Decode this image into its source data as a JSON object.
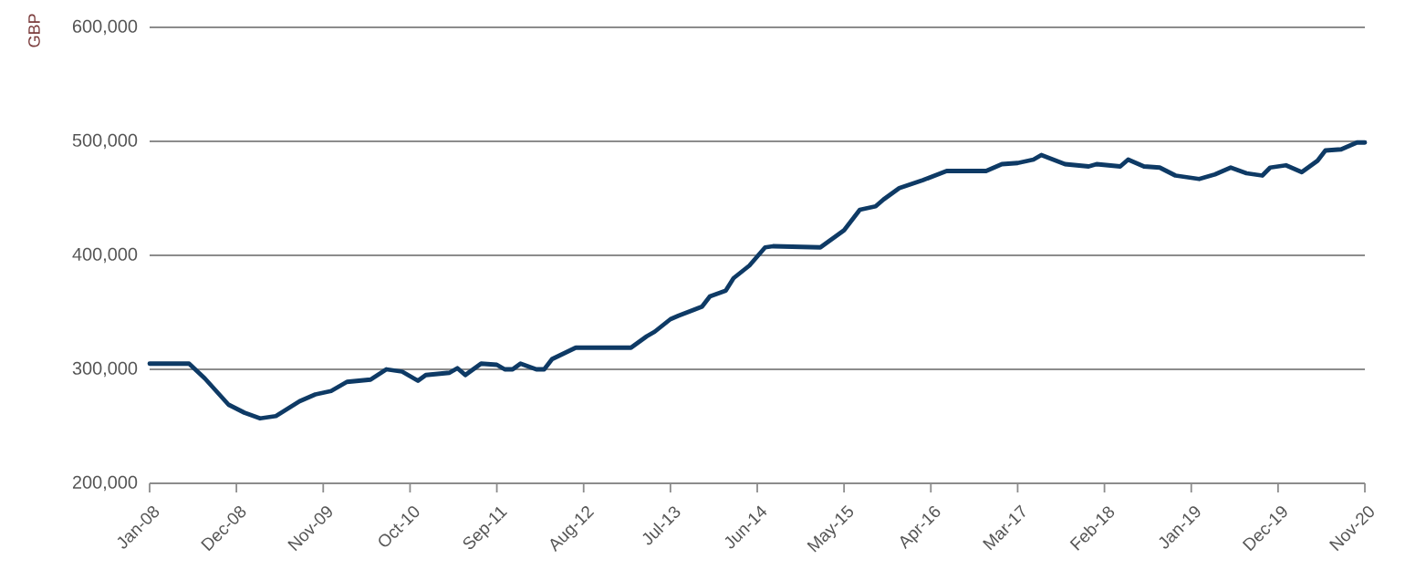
{
  "chart_data": {
    "type": "line",
    "ylabel": "GBP",
    "x": [
      "2008-01",
      "2008-06",
      "2008-08",
      "2008-11",
      "2009-01",
      "2009-03",
      "2009-05",
      "2009-08",
      "2009-10",
      "2009-12",
      "2010-02",
      "2010-05",
      "2010-07",
      "2010-09",
      "2010-11",
      "2010-12",
      "2011-03",
      "2011-04",
      "2011-05",
      "2011-07",
      "2011-09",
      "2011-10",
      "2011-11",
      "2011-12",
      "2012-02",
      "2012-03",
      "2012-04",
      "2012-07",
      "2013-02",
      "2013-04",
      "2013-05",
      "2013-07",
      "2013-08",
      "2013-11",
      "2013-12",
      "2014-02",
      "2014-03",
      "2014-05",
      "2014-07",
      "2014-08",
      "2015-02",
      "2015-05",
      "2015-07",
      "2015-09",
      "2015-10",
      "2015-12",
      "2016-03",
      "2016-06",
      "2016-11",
      "2017-01",
      "2017-03",
      "2017-05",
      "2017-06",
      "2017-09",
      "2017-12",
      "2018-01",
      "2018-04",
      "2018-05",
      "2018-07",
      "2018-09",
      "2018-11",
      "2019-02",
      "2019-04",
      "2019-06",
      "2019-08",
      "2019-10",
      "2019-11",
      "2020-01",
      "2020-03",
      "2020-05",
      "2020-06",
      "2020-08",
      "2020-10",
      "2020-11"
    ],
    "series": [
      {
        "color": "#0e3a65",
        "values": [
          305000,
          305000,
          292000,
          269000,
          262000,
          257000,
          259000,
          272000,
          278000,
          281000,
          289000,
          291000,
          300000,
          298000,
          290000,
          295000,
          297000,
          301000,
          295000,
          305000,
          304000,
          300000,
          300000,
          305000,
          300000,
          300000,
          309000,
          319000,
          319000,
          329000,
          333000,
          344000,
          347000,
          355000,
          364000,
          369000,
          380000,
          391000,
          407000,
          408000,
          407000,
          422000,
          440000,
          443000,
          449000,
          459000,
          466000,
          474000,
          474000,
          480000,
          481000,
          484000,
          488000,
          480000,
          478000,
          480000,
          478000,
          484000,
          478000,
          477000,
          470000,
          467000,
          471000,
          477000,
          472000,
          470000,
          477000,
          479000,
          473000,
          483000,
          492000,
          493000,
          499000,
          499000
        ]
      }
    ],
    "xlim": [
      "2008-01",
      "2020-11"
    ],
    "xticks": [
      {
        "value": "2008-01",
        "label": "Jan-08"
      },
      {
        "value": "2008-12",
        "label": "Dec-08"
      },
      {
        "value": "2009-11",
        "label": "Nov-09"
      },
      {
        "value": "2010-10",
        "label": "Oct-10"
      },
      {
        "value": "2011-09",
        "label": "Sep-11"
      },
      {
        "value": "2012-08",
        "label": "Aug-12"
      },
      {
        "value": "2013-07",
        "label": "Jul-13"
      },
      {
        "value": "2014-06",
        "label": "Jun-14"
      },
      {
        "value": "2015-05",
        "label": "May-15"
      },
      {
        "value": "2016-04",
        "label": "Apr-16"
      },
      {
        "value": "2017-03",
        "label": "Mar-17"
      },
      {
        "value": "2018-02",
        "label": "Feb-18"
      },
      {
        "value": "2019-01",
        "label": "Jan-19"
      },
      {
        "value": "2019-12",
        "label": "Dec-19"
      },
      {
        "value": "2020-11",
        "label": "Nov-20"
      }
    ],
    "ylim": [
      200000,
      600000
    ],
    "yticks": [
      {
        "value": 200000,
        "label": "200,000"
      },
      {
        "value": 300000,
        "label": "300,000"
      },
      {
        "value": 400000,
        "label": "400,000"
      },
      {
        "value": 500000,
        "label": "500,000"
      },
      {
        "value": 600000,
        "label": "600,000"
      }
    ],
    "grid": "y",
    "marker": "none",
    "line_style": "solid"
  }
}
